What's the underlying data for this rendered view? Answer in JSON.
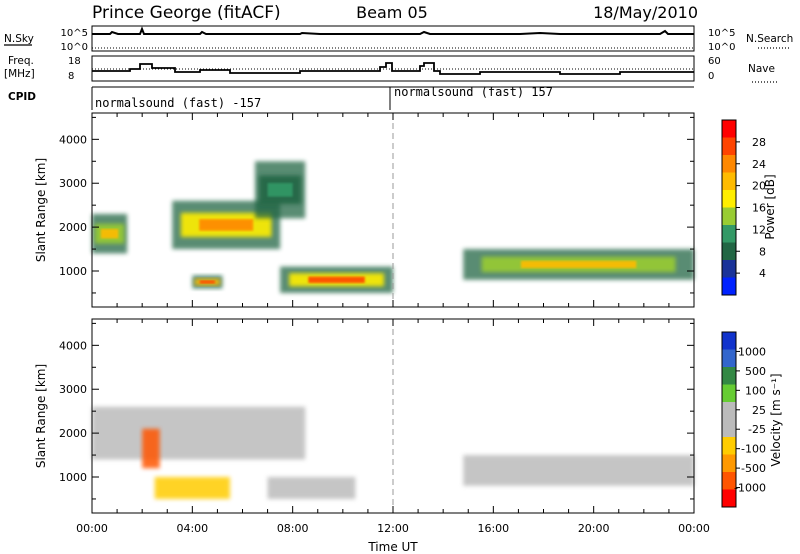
{
  "header": {
    "station": "Prince George (fitACF)",
    "beam": "Beam 05",
    "date": "18/May/2010"
  },
  "top_panels": {
    "nsky_label": "N.Sky",
    "nsky_tick_top": "10^5",
    "nsky_tick_bottom": "10^0",
    "nsearch_label": "N.Search",
    "nsearch_tick_top": "10^5",
    "nsearch_tick_bottom": "10^0",
    "freq_label": "Freq.",
    "freq_unit": "[MHz]",
    "freq_tick_top": "18",
    "freq_tick_bottom": "8",
    "nave_label": "Nave",
    "nave_tick_top": "60",
    "nave_tick_bottom": "0",
    "cpid_label": "CPID",
    "cpid_left": "normalsound (fast) -157",
    "cpid_right": "normalsound (fast) 157"
  },
  "axes": {
    "y_label": "Slant Range [km]",
    "y_ticks": [
      "4000",
      "3000",
      "2000",
      "1000"
    ],
    "x_ticks": [
      "00:00",
      "04:00",
      "08:00",
      "12:00",
      "16:00",
      "20:00",
      "00:00"
    ],
    "x_label": "Time UT"
  },
  "power_colorbar": {
    "label": "Power [dB]",
    "ticks": [
      "28",
      "24",
      "20",
      "16",
      "12",
      "8",
      "4"
    ],
    "colors": [
      "#ff0000",
      "#ff4400",
      "#ff8800",
      "#ffbb00",
      "#ffee00",
      "#99cc33",
      "#339966",
      "#226644",
      "#1a3399",
      "#0022ff"
    ]
  },
  "velocity_colorbar": {
    "label": "Velocity [m s⁻¹]",
    "ticks": [
      "1000",
      "500",
      "100",
      "25",
      "-25",
      "-100",
      "-500",
      "-1000"
    ],
    "colors": [
      "#1133cc",
      "#3366cc",
      "#338844",
      "#66cc33",
      "#bbbbbb",
      "#bbbbbb",
      "#ffcc00",
      "#ff9900",
      "#ff5500",
      "#ff0000"
    ]
  },
  "chart_data": [
    {
      "type": "heatmap",
      "title": "Power",
      "xlabel": "Time UT",
      "ylabel": "Slant Range [km]",
      "x_range_hours": [
        0,
        24
      ],
      "ylim": [
        180,
        4600
      ],
      "colorbar_label": "Power [dB]",
      "colorbar_range": [
        0,
        30
      ],
      "echo_regions": [
        {
          "t_start": 0.0,
          "t_end": 1.4,
          "range_min": 1400,
          "range_max": 2300,
          "level_db": 20
        },
        {
          "t_start": 3.2,
          "t_end": 7.5,
          "range_min": 1500,
          "range_max": 2600,
          "level_db": 22
        },
        {
          "t_start": 6.5,
          "t_end": 8.5,
          "range_min": 2200,
          "range_max": 3500,
          "level_db": 10
        },
        {
          "t_start": 4.0,
          "t_end": 5.2,
          "range_min": 600,
          "range_max": 900,
          "level_db": 26
        },
        {
          "t_start": 7.5,
          "t_end": 12.0,
          "range_min": 500,
          "range_max": 1100,
          "level_db": 24
        },
        {
          "t_start": 14.8,
          "t_end": 24.0,
          "range_min": 800,
          "range_max": 1500,
          "level_db": 18
        }
      ]
    },
    {
      "type": "heatmap",
      "title": "Velocity",
      "xlabel": "Time UT",
      "ylabel": "Slant Range [km]",
      "x_range_hours": [
        0,
        24
      ],
      "ylim": [
        180,
        4600
      ],
      "colorbar_label": "Velocity [m s⁻¹]",
      "colorbar_range": [
        -1000,
        1000
      ],
      "echo_regions": [
        {
          "t_start": 0.0,
          "t_end": 8.5,
          "range_min": 1400,
          "range_max": 2600,
          "velocity": 0
        },
        {
          "t_start": 2.0,
          "t_end": 2.7,
          "range_min": 1200,
          "range_max": 2100,
          "velocity": -800
        },
        {
          "t_start": 2.5,
          "t_end": 5.5,
          "range_min": 500,
          "range_max": 1000,
          "velocity": -300
        },
        {
          "t_start": 7.0,
          "t_end": 10.5,
          "range_min": 500,
          "range_max": 1000,
          "velocity": 0
        },
        {
          "t_start": 14.8,
          "t_end": 24.0,
          "range_min": 800,
          "range_max": 1500,
          "velocity": 0
        }
      ]
    }
  ]
}
